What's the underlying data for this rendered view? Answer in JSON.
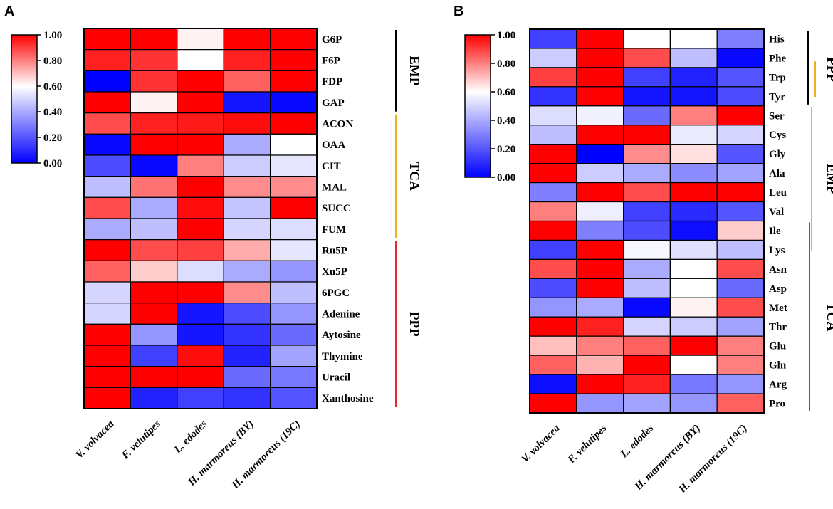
{
  "chart_data": [
    {
      "type": "heatmap",
      "panel": "A",
      "columns": [
        "V. volvacea",
        "F. velutipes",
        "L. edodes",
        "H. marmoreus (BY)",
        "H. marmoreus (19C)"
      ],
      "rows": [
        "G6P",
        "F6P",
        "FDP",
        "GAP",
        "ACON",
        "OAA",
        "CIT",
        "MAL",
        "SUCC",
        "FUM",
        "Ru5P",
        "Xu5P",
        "6PGC",
        "Adenine",
        "Aytosine",
        "Thymine",
        "Uracil",
        "Xanthosine"
      ],
      "values": [
        [
          1.0,
          1.0,
          0.62,
          1.0,
          1.0
        ],
        [
          0.95,
          0.92,
          0.6,
          0.95,
          1.0
        ],
        [
          0.0,
          0.92,
          1.0,
          0.85,
          1.0
        ],
        [
          1.0,
          0.62,
          1.0,
          0.05,
          0.02
        ],
        [
          0.88,
          0.95,
          0.96,
          0.98,
          1.0
        ],
        [
          0.02,
          1.0,
          1.0,
          0.4,
          0.6
        ],
        [
          0.18,
          0.02,
          0.8,
          0.48,
          0.54
        ],
        [
          0.45,
          0.82,
          1.0,
          0.78,
          0.78
        ],
        [
          0.88,
          0.4,
          0.98,
          0.46,
          1.0
        ],
        [
          0.4,
          0.45,
          1.0,
          0.5,
          0.52
        ],
        [
          1.0,
          0.88,
          0.9,
          0.73,
          0.54
        ],
        [
          0.85,
          0.68,
          0.52,
          0.4,
          0.35
        ],
        [
          0.5,
          1.0,
          1.0,
          0.78,
          0.45
        ],
        [
          0.5,
          1.0,
          0.05,
          0.18,
          0.35
        ],
        [
          1.0,
          0.35,
          0.05,
          0.12,
          0.25
        ],
        [
          1.0,
          0.15,
          0.98,
          0.08,
          0.38
        ],
        [
          1.0,
          1.0,
          1.0,
          0.25,
          0.28
        ],
        [
          1.0,
          0.08,
          0.15,
          0.12,
          0.2
        ]
      ],
      "colorbar": {
        "min": 0.0,
        "max": 1.0,
        "ticks": [
          "1.00",
          "0.80",
          "0.60",
          "0.40",
          "0.20",
          "0.00"
        ]
      },
      "groups": [
        {
          "label": "EMP",
          "color": "#000000",
          "from_row": "G6P",
          "to_row": "GAP"
        },
        {
          "label": "TCA",
          "color": "#F2B01E",
          "from_row": "ACON",
          "to_row": "FUM"
        },
        {
          "label": "PPP",
          "color": "#E8262B",
          "from_row": "Ru5P",
          "to_row": "Xanthosine"
        }
      ]
    },
    {
      "type": "heatmap",
      "panel": "B",
      "columns": [
        "V. volvacea",
        "F. velutipes",
        "L. edodes",
        "H. marmoreus (BY)",
        "H. marmoreus (19C)"
      ],
      "rows": [
        "His",
        "Phe",
        "Trp",
        "Tyr",
        "Ser",
        "Cys",
        "Gly",
        "Ala",
        "Leu",
        "Val",
        "Ile",
        "Lys",
        "Asn",
        "Asp",
        "Met",
        "Thr",
        "Glu",
        "Gln",
        "Arg",
        "Pro"
      ],
      "values": [
        [
          0.15,
          1.0,
          0.6,
          0.6,
          0.3
        ],
        [
          0.48,
          1.0,
          0.88,
          0.45,
          0.02
        ],
        [
          0.9,
          1.0,
          0.15,
          0.08,
          0.2
        ],
        [
          0.12,
          1.0,
          0.05,
          0.05,
          0.18
        ],
        [
          0.52,
          0.57,
          0.25,
          0.8,
          1.0
        ],
        [
          0.45,
          1.0,
          1.0,
          0.55,
          0.5
        ],
        [
          1.0,
          0.0,
          0.78,
          0.65,
          0.2
        ],
        [
          1.0,
          0.48,
          0.4,
          0.33,
          0.38
        ],
        [
          0.3,
          1.0,
          0.88,
          1.0,
          1.0
        ],
        [
          0.8,
          0.56,
          0.15,
          0.1,
          0.2
        ],
        [
          1.0,
          0.3,
          0.18,
          0.03,
          0.68
        ],
        [
          0.15,
          1.0,
          0.58,
          0.53,
          0.45
        ],
        [
          0.88,
          1.0,
          0.4,
          0.6,
          0.88
        ],
        [
          0.18,
          1.0,
          0.45,
          0.6,
          0.25
        ],
        [
          0.35,
          0.4,
          0.02,
          0.62,
          0.88
        ],
        [
          1.0,
          0.95,
          0.5,
          0.48,
          0.38
        ],
        [
          0.7,
          0.8,
          0.85,
          1.0,
          0.8
        ],
        [
          0.85,
          0.72,
          1.0,
          0.6,
          0.8
        ],
        [
          0.03,
          1.0,
          0.95,
          0.28,
          0.35
        ],
        [
          1.0,
          0.35,
          0.38,
          0.35,
          0.85
        ]
      ],
      "colorbar": {
        "min": 0.0,
        "max": 1.0,
        "ticks": [
          "1.00",
          "0.80",
          "0.60",
          "0.40",
          "0.20",
          "0.00"
        ]
      },
      "groups": [
        {
          "label": "PPP",
          "color": "#000000",
          "from_row": "His",
          "to_row": "Tyr"
        },
        {
          "label": "PPP",
          "color": "#F2B01E",
          "from_row": "Trp",
          "to_row": "Tyr"
        },
        {
          "label": "EMP",
          "color": "#F2B01E",
          "from_row": "Ser",
          "to_row": "Lys"
        },
        {
          "label": "TCA",
          "color": "#E8262B",
          "from_row": "Ile",
          "to_row": "Pro"
        }
      ]
    }
  ]
}
